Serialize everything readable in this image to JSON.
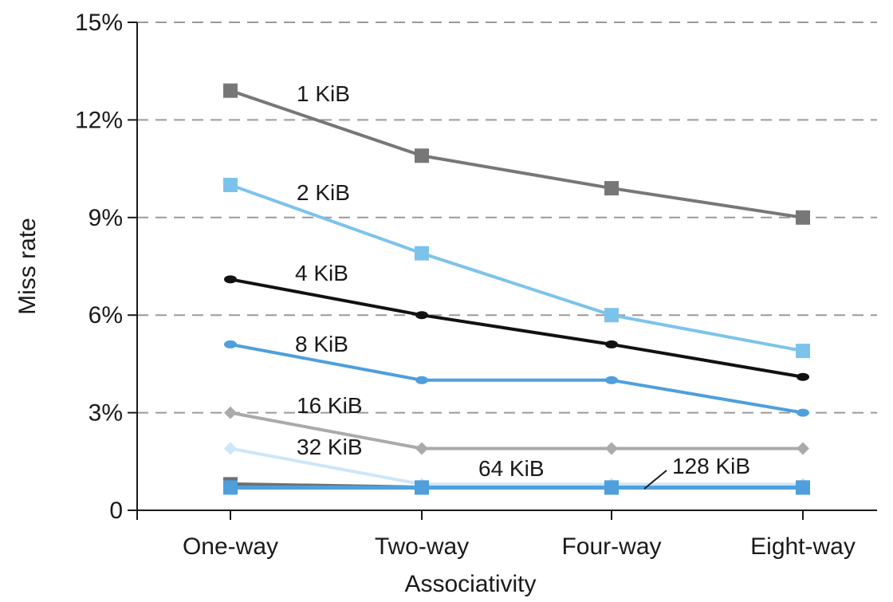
{
  "chart_data": {
    "type": "line",
    "title": "",
    "xlabel": "Associativity",
    "ylabel": "Miss rate",
    "categories": [
      "One-way",
      "Two-way",
      "Four-way",
      "Eight-way"
    ],
    "yticks": [
      {
        "value": 0,
        "label": "0"
      },
      {
        "value": 3,
        "label": "3%"
      },
      {
        "value": 6,
        "label": "6%"
      },
      {
        "value": 9,
        "label": "9%"
      },
      {
        "value": 12,
        "label": "12%"
      },
      {
        "value": 15,
        "label": "15%"
      }
    ],
    "ylim": [
      0,
      15
    ],
    "grid": "horizontal dashed",
    "series": [
      {
        "name": "1 KiB",
        "values": [
          12.9,
          10.9,
          9.9,
          9.0
        ],
        "color": "#777777",
        "marker": "square"
      },
      {
        "name": "2 KiB",
        "values": [
          10.0,
          7.9,
          6.0,
          4.9
        ],
        "color": "#7cc3ec",
        "marker": "square"
      },
      {
        "name": "4 KiB",
        "values": [
          7.1,
          6.0,
          5.1,
          4.1
        ],
        "color": "#111111",
        "marker": "circle"
      },
      {
        "name": "8 KiB",
        "values": [
          5.1,
          4.0,
          4.0,
          3.0
        ],
        "color": "#4e9fdc",
        "marker": "circle"
      },
      {
        "name": "16 KiB",
        "values": [
          3.0,
          1.9,
          1.9,
          1.9
        ],
        "color": "#aaaaaa",
        "marker": "diamond"
      },
      {
        "name": "32 KiB",
        "values": [
          1.9,
          0.8,
          0.8,
          0.8
        ],
        "color": "#cde6f8",
        "marker": "diamond"
      },
      {
        "name": "64 KiB",
        "values": [
          0.8,
          0.7,
          0.7,
          0.7
        ],
        "color": "#6f6f6f",
        "marker": "square"
      },
      {
        "name": "128 KiB",
        "values": [
          0.7,
          0.7,
          0.7,
          0.7
        ],
        "color": "#4e9fdc",
        "marker": "square"
      }
    ]
  }
}
